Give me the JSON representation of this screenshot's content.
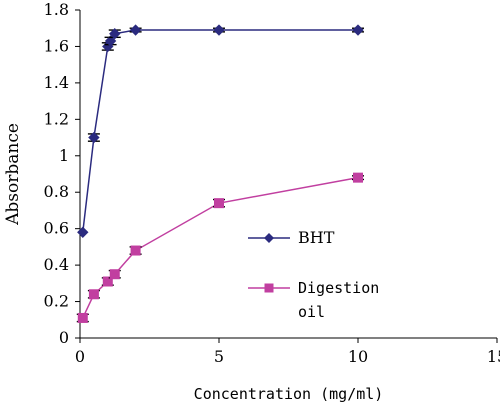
{
  "chart_data": {
    "type": "line",
    "xlabel": "Concentration (mg/ml)",
    "ylabel": "Absorbance",
    "xlim": [
      0,
      15
    ],
    "ylim": [
      0,
      1.8
    ],
    "xticks": [
      "0",
      "5",
      "10",
      "15"
    ],
    "yticks": [
      "0",
      "0.2",
      "0.4",
      "0.6",
      "0.8",
      "1",
      "1.2",
      "1.4",
      "1.6",
      "1.8"
    ],
    "grid": false,
    "legend_position": "right",
    "series": [
      {
        "name": "BHT",
        "color": "#2b2b7f",
        "marker": "diamond",
        "x": [
          0.1,
          0.5,
          1.0,
          1.1,
          1.25,
          2.0,
          5.0,
          10.0
        ],
        "y": [
          0.58,
          1.1,
          1.6,
          1.63,
          1.67,
          1.69,
          1.69,
          1.69
        ],
        "error": [
          0.0,
          0.02,
          0.02,
          0.02,
          0.02,
          0.01,
          0.01,
          0.01
        ]
      },
      {
        "name": "Digestion oil",
        "color": "#c13fa0",
        "marker": "square",
        "x": [
          0.1,
          0.5,
          1.0,
          1.25,
          2.0,
          5.0,
          10.0
        ],
        "y": [
          0.11,
          0.24,
          0.31,
          0.35,
          0.48,
          0.74,
          0.88
        ],
        "error": [
          0.02,
          0.02,
          0.02,
          0.02,
          0.02,
          0.02,
          0.01
        ]
      }
    ]
  }
}
